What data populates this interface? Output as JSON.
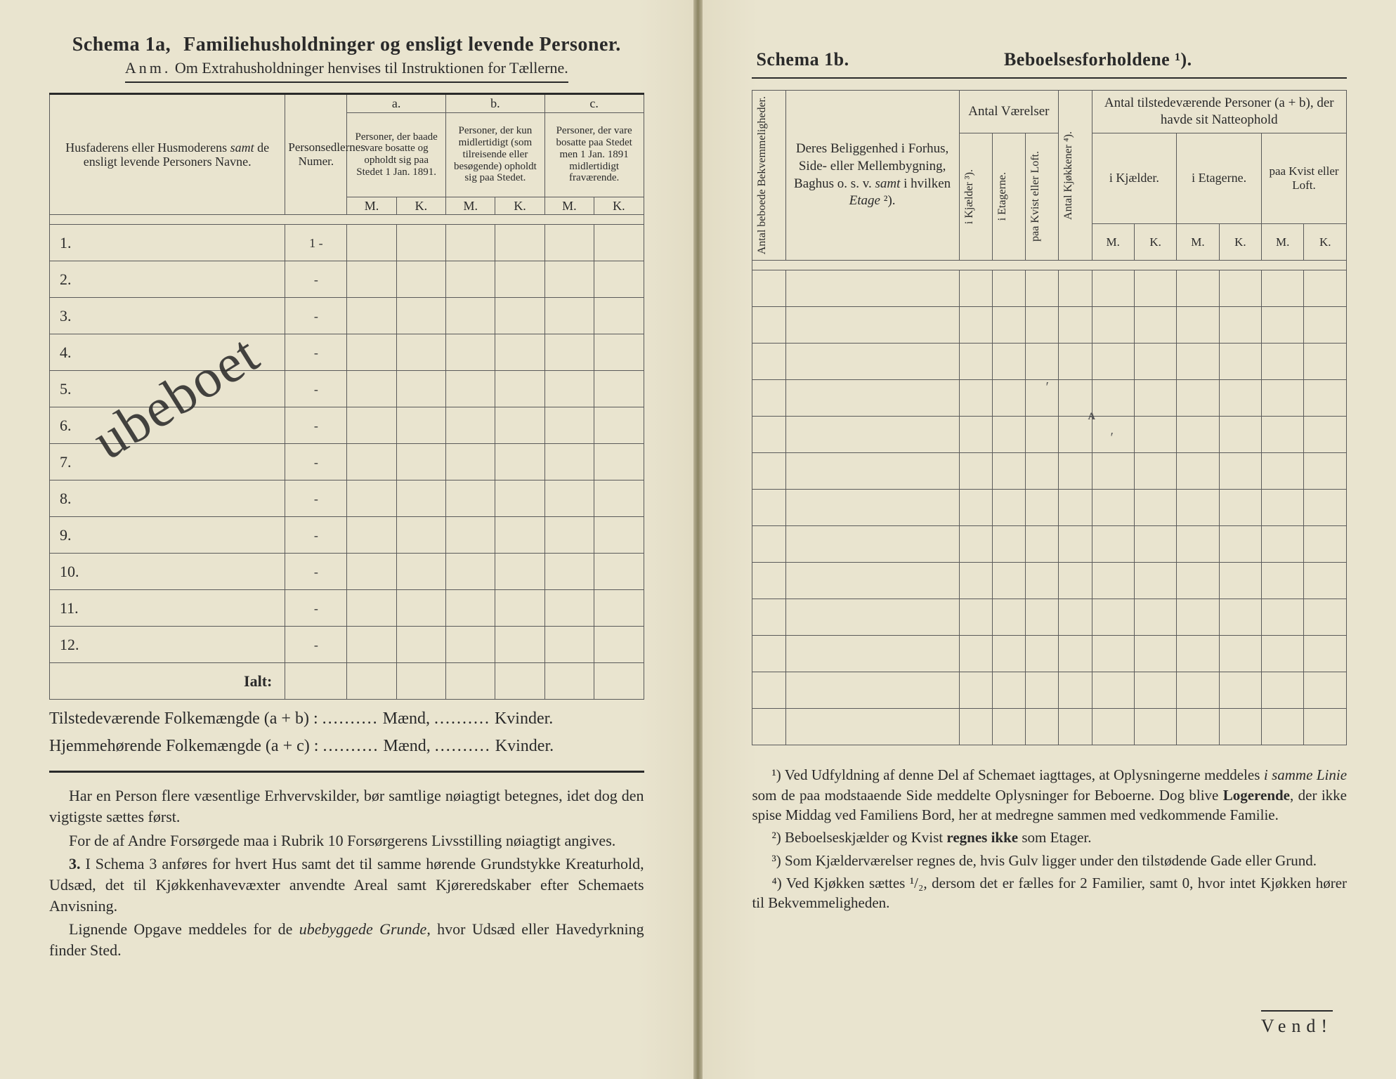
{
  "colors": {
    "paper": "#e9e4cf",
    "ink": "#2a2a2a",
    "rule": "#5a5a5a"
  },
  "left": {
    "schema_label": "Schema 1a,",
    "schema_title": "Familiehusholdninger og ensligt levende Personer.",
    "anm_prefix": "Anm.",
    "anm_text": "Om Extrahusholdninger henvises til Instruktionen for Tællerne.",
    "col_a": "a.",
    "col_b": "b.",
    "col_c": "c.",
    "names_head_html": "Husfaderens eller Husmoderens <em>samt</em> de ensligt levende Personers Navne.",
    "num_head": "Personsedlernes Numer.",
    "col_a_text": "Personer, der baade vare bosatte og opholdt sig paa Stedet 1 Jan. 1891.",
    "col_b_text": "Personer, der kun midlertidigt (som tilreisende eller besøgende) opholdt sig paa Stedet.",
    "col_c_text": "Personer, der vare bosatte paa Stedet men 1 Jan. 1891 midlertidigt fraværende.",
    "mk_m": "M.",
    "mk_k": "K.",
    "rows": [
      "1.",
      "2.",
      "3.",
      "4.",
      "5.",
      "6.",
      "7.",
      "8.",
      "9.",
      "10.",
      "11.",
      "12."
    ],
    "row1_num": "1 -",
    "row_dash": "-",
    "ialt": "Ialt:",
    "totals_line1_a": "Tilstedeværende Folkemængde (a + b) :",
    "totals_line2_a": "Hjemmehørende Folkemængde (a + c) :",
    "totals_maend": "Mænd,",
    "totals_kvinder": "Kvinder.",
    "dots": "..........",
    "instr_p1": "Har en Person flere væsentlige Erhvervskilder, bør samtlige nøiagtigt betegnes, idet dog den vigtigste sættes først.",
    "instr_p2": "For de af Andre Forsørgede maa i Rubrik 10 Forsørgerens Livsstilling nøiagtigt angives.",
    "instr_p3_label": "3.",
    "instr_p3": "I Schema 3 anføres for hvert Hus samt det til samme hørende Grundstykke Kreaturhold, Udsæd, det til Kjøkkenhavevæxter anvendte Areal samt Kjøreredskaber efter Schemaets Anvisning.",
    "instr_p4": "Lignende Opgave meddeles for de <em>ubebyggede Grunde</em>, hvor Udsæd eller Havedyrkning finder Sted.",
    "handwriting": "ubeboet"
  },
  "right": {
    "schema_label": "Schema 1b.",
    "schema_title": "Beboelsesforholdene ¹).",
    "col_bekv": "Antal beboede Bekvemmeligheder.",
    "col_belig_html": "Deres Beliggenhed i Forhus, Side- eller Mellembygning, Baghus o. s. v. <em>samt</em> i hvilken <em>Etage</em> ²).",
    "col_antvar": "Antal Værelser",
    "col_kjaelder": "i Kjælder ³).",
    "col_etagerne": "i Etagerne.",
    "col_kvist": "paa Kvist eller Loft.",
    "col_kjokken": "Antal Kjøkkener ⁴).",
    "col_natte_top": "Antal tilstedeværende Personer (a + b), der havde sit Natteophold",
    "col_natte_kj": "i Kjælder.",
    "col_natte_et": "i Etagerne.",
    "col_natte_kv": "paa Kvist eller Loft.",
    "mk_m": "M.",
    "mk_k": "K.",
    "num_rows": 13,
    "fn1": "¹) Ved Udfyldning af denne Del af Schemaet iagttages, at Oplysningerne meddeles <em>i samme Linie</em> som de paa modstaaende Side meddelte Oplysninger for Beboerne. Dog blive <b>Logerende</b>, der ikke spise Middag ved Familiens Bord, her at medregne sammen med vedkommende Familie.",
    "fn2": "²) Beboelseskjælder og Kvist <b>regnes ikke</b> som Etager.",
    "fn3": "³) Som Kjælderværelser regnes de, hvis Gulv ligger under den tilstødende Gade eller Grund.",
    "fn4": "⁴) Ved Kjøkken sættes ¹/₂, dersom det er fælles for 2 Familier, samt 0, hvor intet Kjøkken hører til Bekvemmeligheden.",
    "vend": "Vend!"
  }
}
